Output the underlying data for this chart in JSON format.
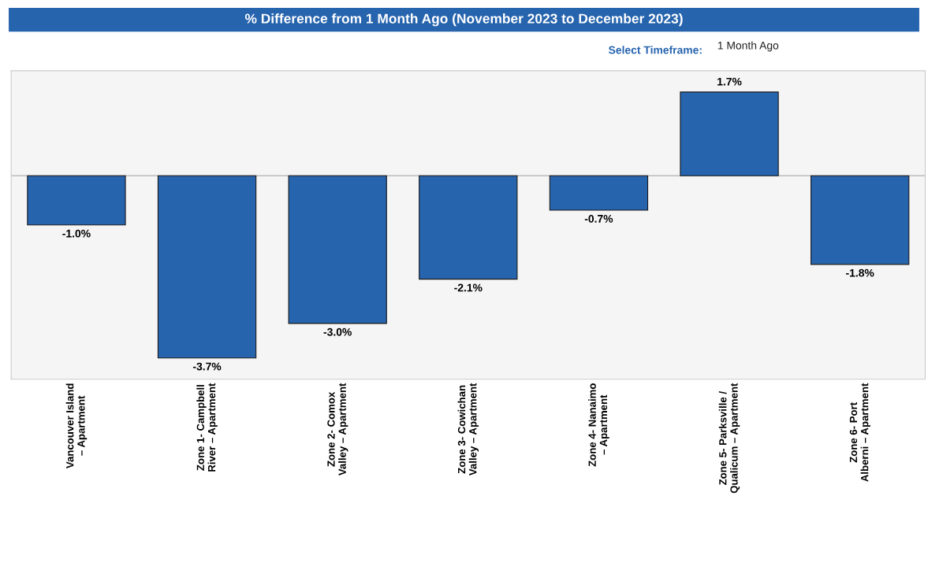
{
  "chart_data": {
    "type": "bar",
    "title": "% Difference from 1 Month Ago (November 2023 to December 2023)",
    "categories": [
      "Vancouver Island – Apartment",
      "Zone 1- Campbell River – Apartment",
      "Zone 2- Comox Valley – Apartment",
      "Zone 3- Cowichan Valley – Apartment",
      "Zone 4- Nanaimo – Apartment",
      "Zone 5- Parksville / Qualicum – Apartment",
      "Zone 6- Port Alberni – Apartment"
    ],
    "values": [
      -1.0,
      -3.7,
      -3.0,
      -2.1,
      -0.7,
      1.7,
      -1.8
    ],
    "value_labels": [
      "-1.0%",
      "-3.7%",
      "-3.0%",
      "-2.1%",
      "-0.7%",
      "1.7%",
      "-1.8%"
    ],
    "color": "#2764ae",
    "annotations": [
      "Select Timeframe:",
      "1 Month Ago"
    ],
    "grid": false,
    "legend": false
  }
}
